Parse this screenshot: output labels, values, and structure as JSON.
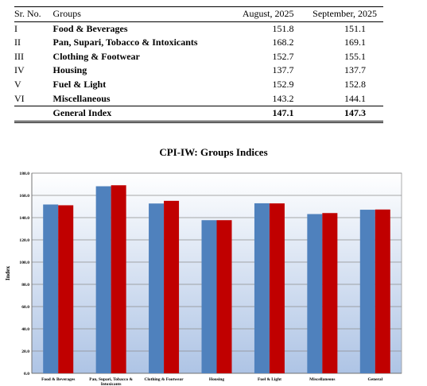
{
  "table": {
    "headers": {
      "sr": "Sr. No.",
      "group": "Groups",
      "aug": "August, 2025",
      "sep": "September, 2025"
    },
    "rows": [
      {
        "sr": "I",
        "group": "Food & Beverages",
        "aug": "151.8",
        "sep": "151.1"
      },
      {
        "sr": "II",
        "group": "Pan, Supari, Tobacco & Intoxicants",
        "aug": "168.2",
        "sep": "169.1"
      },
      {
        "sr": "III",
        "group": "Clothing & Footwear",
        "aug": "152.7",
        "sep": "155.1"
      },
      {
        "sr": "IV",
        "group": "Housing",
        "aug": "137.7",
        "sep": "137.7"
      },
      {
        "sr": "V",
        "group": "Fuel & Light",
        "aug": "152.9",
        "sep": "152.8"
      },
      {
        "sr": "VI",
        "group": "Miscellaneous",
        "aug": "143.2",
        "sep": "144.1"
      }
    ],
    "total": {
      "group": "General Index",
      "aug": "147.1",
      "sep": "147.3"
    }
  },
  "chart_data": {
    "type": "bar",
    "title": "CPI-IW: Groups Indices",
    "xlabel": "",
    "ylabel": "Index",
    "ylim": [
      0,
      180
    ],
    "yticks": [
      "0.0",
      "20.0",
      "40.0",
      "60.0",
      "80.0",
      "100.0",
      "120.0",
      "140.0",
      "160.0",
      "180.0"
    ],
    "grid": true,
    "legend": "none",
    "categories": [
      "Food & Beverages",
      "Pan, Supari, Tobacco & Intoxicants",
      "Clothing & Footwear",
      "Housing",
      "Fuel & Light",
      "Miscellaneous",
      "General"
    ],
    "series": [
      {
        "values": [
          151.8,
          168.2,
          152.7,
          137.7,
          152.9,
          143.2,
          147.1
        ],
        "color": "#4f81bd"
      },
      {
        "values": [
          151.1,
          169.1,
          155.1,
          137.7,
          152.8,
          144.1,
          147.3
        ],
        "color": "#c00000"
      }
    ],
    "background_gradient": [
      "#ffffff",
      "#aec4e5"
    ]
  }
}
